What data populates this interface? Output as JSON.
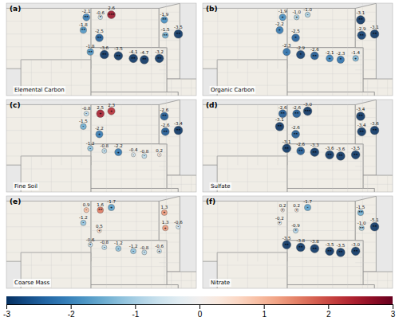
{
  "chart_data": {
    "type": "bubble_map",
    "xlim": [
      -112.5,
      -93.5
    ],
    "ylim": [
      42.2,
      49.4
    ],
    "tick_labels": false,
    "data_labels": true,
    "x": [
      -104.5,
      -103.1,
      -102.0,
      -104.8,
      -103.2,
      -104.1,
      -102.7,
      -101.3,
      -99.8,
      -98.7,
      -97.2,
      -96.6,
      -96.7,
      -95.3
    ],
    "y": [
      48.3,
      48.3,
      48.5,
      47.3,
      46.7,
      45.6,
      45.4,
      45.3,
      45.1,
      45.0,
      45.1,
      46.9,
      48.1,
      47.0
    ],
    "colorbar_range": [
      -3,
      3
    ],
    "colorbar_ticks": [
      -3,
      -2,
      -1,
      0,
      1,
      2,
      3
    ],
    "panels": [
      {
        "title": "(a)",
        "subtitle": "Elemental Carbon",
        "values": [
          -2.1,
          -0.6,
          2.6,
          -1.8,
          -2.5,
          -1.8,
          -3.6,
          -3.5,
          -4.1,
          -4.7,
          -3.2,
          -1.5,
          -1.9,
          -3.5
        ],
        "value_labels": [
          "-2.1",
          "-0.6",
          "2.6",
          "-1.8",
          "-2.5",
          "-1.8",
          "-3.6",
          "-3.5",
          "-4.1",
          "-4.7",
          "-3.2",
          "-1.5",
          "-1.9",
          "-3.5"
        ],
        "annotations": [
          "**",
          "*",
          "***",
          "**",
          "**",
          "**",
          "**",
          "**",
          "**",
          "**",
          "**",
          "**",
          "**",
          "**"
        ]
      },
      {
        "title": "(b)",
        "subtitle": "Organic Carbon",
        "values": [
          -1.9,
          -1.0,
          -1.0,
          -2.2,
          -2.5,
          -2.3,
          -2.9,
          -2.6,
          -2.1,
          -2.3,
          -1.4,
          -2.9,
          -3.1,
          -3.1
        ],
        "value_labels": [
          "-1.9",
          "-1.0",
          "-1.0",
          "-2.2",
          "-2.5",
          "-2.3",
          "-2.9",
          "-2.6",
          "-2.1",
          "-2.3",
          "-1.4",
          "-2.9",
          "-3.1",
          "-3.1"
        ],
        "annotations": [
          "+",
          "+",
          "-",
          "+",
          "*",
          "-",
          "*",
          "**",
          "+",
          "*",
          "+",
          "**",
          "**",
          "**"
        ]
      },
      {
        "title": "(c)",
        "subtitle": "Fine Soil",
        "values": [
          -0.8,
          2.5,
          2.3,
          -1.5,
          -2.2,
          -1.2,
          -0.8,
          -2.2,
          -0.4,
          -0.8,
          0.2,
          -2.6,
          -2.6,
          -3.4
        ],
        "value_labels": [
          "-0.8",
          "2.5",
          "2.3",
          "-1.5",
          "-2.2",
          "-1.2",
          "-0.8",
          "-2.2",
          "-0.4",
          "-0.8",
          "0.2",
          "-2.6",
          "-2.6",
          "-3.4"
        ],
        "annotations": [
          "-",
          "+",
          "+",
          "-",
          "+",
          "-",
          "-",
          "+",
          "-",
          "-",
          "-",
          "**",
          "**",
          "**"
        ]
      },
      {
        "title": "(d)",
        "subtitle": "Sulfate",
        "values": [
          -2.6,
          -2.6,
          -3.0,
          -3.1,
          -2.6,
          -3.1,
          -2.6,
          -3.3,
          -3.6,
          -3.6,
          -3.5,
          -3.4,
          -3.4,
          -3.6
        ],
        "value_labels": [
          "-2.6",
          "-2.6",
          "-3.0",
          "-3.1",
          "-2.6",
          "-3.1",
          "-2.6",
          "-3.3",
          "-3.6",
          "-3.6",
          "-3.5",
          "-3.4",
          "-3.4",
          "-3.6"
        ],
        "annotations": [
          "**",
          "**",
          "***",
          "**",
          "**",
          "**",
          "**",
          "**",
          "**",
          "**",
          "**",
          "**",
          "**",
          "**"
        ]
      },
      {
        "title": "(e)",
        "subtitle": "Coarse Mass",
        "values": [
          0.9,
          1.6,
          -1.7,
          -1.2,
          0.5,
          -0.6,
          -0.8,
          -1.2,
          -1.2,
          -0.8,
          -0.6,
          1.3,
          1.3,
          -0.6
        ],
        "value_labels": [
          "0.9",
          "1.6",
          "-1.7",
          "-1.2",
          "0.5",
          "-0.6",
          "-0.8",
          "-1.2",
          "-1.2",
          "-0.8",
          "-0.6",
          "1.3",
          "1.3",
          "-0.6"
        ],
        "annotations": [
          "-",
          "**",
          "+",
          "-",
          "+",
          "*",
          "-",
          "-",
          "-",
          "-",
          "+",
          "+",
          "+",
          "-"
        ]
      },
      {
        "title": "(f)",
        "subtitle": "Nitrate",
        "values": [
          0.2,
          0.2,
          -1.7,
          -0.2,
          -0.9,
          -3.5,
          -3.8,
          -3.8,
          -3.5,
          -3.5,
          -3.0,
          -1.0,
          -1.5,
          -5.1
        ],
        "value_labels": [
          "0.2",
          "0.2",
          "-1.7",
          "-0.2",
          "-0.9",
          "-3.5",
          "-3.8",
          "-3.8",
          "-3.5",
          "-3.5",
          "-3.0",
          "-1.0",
          "-1.5",
          "-5.1"
        ],
        "annotations": [
          "+",
          "+",
          "-",
          "+",
          "*",
          "**",
          "**",
          "**",
          "**",
          "**",
          "**",
          "**",
          "**",
          "**"
        ]
      }
    ],
    "states": [
      [
        [
          -104.05,
          49.0
        ],
        [
          -97.23,
          49.0
        ],
        [
          -97.23,
          45.94
        ],
        [
          -104.05,
          45.94
        ]
      ],
      [
        [
          -104.05,
          45.94
        ],
        [
          -96.44,
          45.94
        ],
        [
          -96.44,
          42.48
        ],
        [
          -104.05,
          42.48
        ]
      ],
      [
        [
          -97.23,
          49.0
        ],
        [
          -95.15,
          49.38
        ],
        [
          -95.15,
          43.5
        ],
        [
          -96.44,
          43.5
        ],
        [
          -96.44,
          45.94
        ],
        [
          -97.23,
          45.94
        ]
      ],
      [
        [
          -104.05,
          42.48
        ],
        [
          -95.31,
          42.48
        ],
        [
          -95.31,
          40.0
        ],
        [
          -104.05,
          40.0
        ]
      ],
      [
        [
          -116.05,
          49.0
        ],
        [
          -104.05,
          49.0
        ],
        [
          -104.05,
          44.3
        ],
        [
          -116.05,
          44.3
        ]
      ],
      [
        [
          -111.05,
          45.0
        ],
        [
          -104.05,
          45.0
        ],
        [
          -104.05,
          41.0
        ],
        [
          -111.05,
          41.0
        ]
      ],
      [
        [
          -96.44,
          43.5
        ],
        [
          -91.5,
          43.5
        ],
        [
          -91.5,
          40.4
        ],
        [
          -95.31,
          40.4
        ],
        [
          -95.31,
          42.48
        ],
        [
          -96.44,
          42.48
        ]
      ]
    ],
    "county_lines": [
      {
        "lons": [
          -102.5,
          -101.0,
          -99.5,
          -98.0
        ],
        "lat_range": [
          45.94,
          49.0
        ],
        "lats": [
          46.7,
          47.4,
          48.1
        ],
        "lon_range": [
          -104.05,
          -97.23
        ]
      },
      {
        "lons": [
          -102.5,
          -101.0,
          -99.5,
          -98.0,
          -96.7
        ],
        "lat_range": [
          42.48,
          45.94
        ],
        "lats": [
          43.2,
          43.9,
          44.6,
          45.3
        ],
        "lon_range": [
          -104.05,
          -96.44
        ]
      },
      {
        "lons": [
          -96.5
        ],
        "lat_range": [
          43.5,
          49.38
        ],
        "lats": [
          44.2,
          45.0,
          45.8,
          46.5,
          47.3,
          48.0,
          48.7
        ],
        "lon_range": [
          -97.23,
          -95.15
        ]
      },
      {
        "lons": [
          -102.5,
          -101.0,
          -99.5,
          -98.0,
          -96.5
        ],
        "lat_range": [
          40.0,
          42.48
        ],
        "lats": [
          41.0,
          41.5,
          42.0
        ],
        "lon_range": [
          -104.05,
          -95.31
        ]
      },
      {
        "lons": [
          -115,
          -113,
          -111,
          -109,
          -107,
          -105
        ],
        "lat_range": [
          44.3,
          49.0
        ],
        "lats": [
          45,
          46,
          47,
          48,
          49
        ],
        "lon_range": [
          -116.05,
          -104.05
        ]
      },
      {
        "lons": [
          -110,
          -108,
          -106
        ],
        "lat_range": [
          41.0,
          45.0
        ],
        "lats": [
          42,
          43,
          44
        ],
        "lon_range": [
          -111.05,
          -104.05
        ]
      },
      {
        "lons": [
          -96,
          -95,
          -94,
          -93,
          -92
        ],
        "lat_range": [
          40.4,
          43.5
        ],
        "lats": [
          40.7,
          41.4,
          42.1,
          42.8
        ],
        "lon_range": [
          -96.44,
          -91.5
        ]
      }
    ]
  }
}
